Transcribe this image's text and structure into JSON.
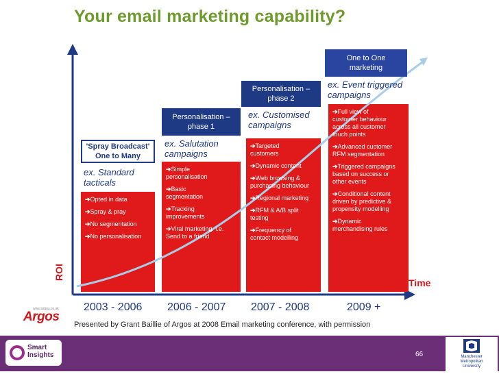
{
  "title": "Your email marketing capability?",
  "axes": {
    "y_label": "ROI",
    "x_label": "Time"
  },
  "stages": [
    {
      "period": "2003 - 2006",
      "heading": "'Spray Broadcast'\nOne to Many",
      "example": "ex. Standard\n  tacticals",
      "items": [
        "Opted in data",
        "Spray & pray",
        "No segmentation",
        "No personalisation"
      ]
    },
    {
      "period": "2006 - 2007",
      "heading": "Personalisation –\nphase 1",
      "example": "ex. Salutation\ncampaigns",
      "items": [
        "Simple\npersonalisation",
        "Basic\n  segmentation",
        "Tracking\nimprovements",
        "Viral marketing. i.e.\nSend to a friend"
      ]
    },
    {
      "period": "2007 - 2008",
      "heading": "Personalisation –\nphase 2",
      "example": "ex. Customised\n   campaigns",
      "items": [
        "Targeted\ncustomers",
        "Dynamic content",
        "Web browsing &\npurchasing behaviour",
        "Regional marketing",
        "RFM & A/B split\ntesting",
        "Frequency of\ncontact modelling"
      ]
    },
    {
      "period": "2009 +",
      "heading": "One to One\nmarketing",
      "example": "ex. Event triggered\ncampaigns",
      "items": [
        "Full view of\ncustomer behaviour\nacross all customer\ntouch points",
        "Advanced customer\nRFM segmentation",
        "Triggered campaigns\nbased on success or\nother events",
        "Conditional content\ndriven by predictive &\npropensity modelling",
        "Dynamic\nmerchandising rules"
      ]
    }
  ],
  "source_logo": "Argos",
  "source_logo_url": "www.argos.co.uk",
  "footer_note": "Presented by Grant Baillie of Argos at 2008 Email marketing conference, with permission",
  "slide_number": "66",
  "brand_logo": "Smart\nInsights",
  "university_logo": "Manchester\nMetropolitan\nUniversity",
  "colors": {
    "title": "#6f9a2e",
    "stage_body": "#e01a1a",
    "stage_head": "#1f3a85",
    "bar": "#6b2f77"
  }
}
